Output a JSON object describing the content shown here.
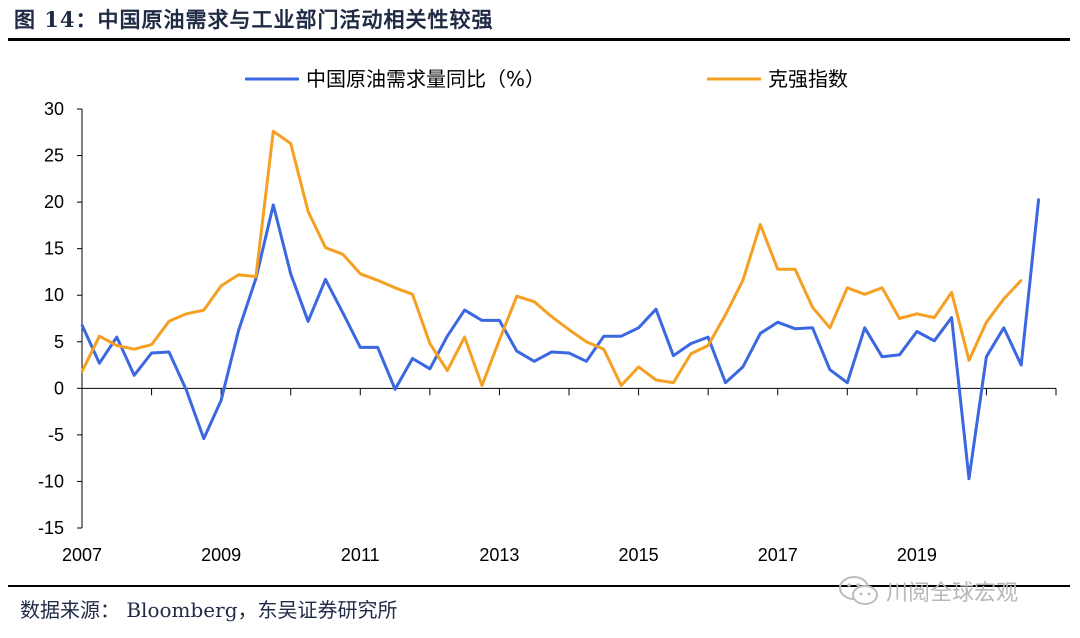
{
  "title": "图 14：中国原油需求与工业部门活动相关性较强",
  "source": "数据来源： Bloomberg，东吴证券研究所",
  "watermark": "川阅全球宏观",
  "colors": {
    "series1": "#3b68e0",
    "series2": "#f5a023",
    "axis": "#000000",
    "text": "#1f2a44"
  },
  "chart_data": {
    "type": "line",
    "ylim": [
      -15,
      30
    ],
    "xlim": [
      2007.0,
      2021.0
    ],
    "yticks": [
      "-15",
      "-10",
      "-5",
      "0",
      "5",
      "10",
      "15",
      "20",
      "25",
      "30"
    ],
    "xticks": [
      "2007",
      "2009",
      "2011",
      "2013",
      "2015",
      "2017",
      "2019"
    ],
    "legend_position": "top",
    "series": [
      {
        "name": "中国原油需求量同比（%）",
        "color": "#3b68e0",
        "points": [
          [
            2007.0,
            6.8
          ],
          [
            2007.25,
            2.7
          ],
          [
            2007.5,
            5.5
          ],
          [
            2007.75,
            1.4
          ],
          [
            2008.0,
            3.8
          ],
          [
            2008.25,
            3.9
          ],
          [
            2008.5,
            -0.2
          ],
          [
            2008.75,
            -5.4
          ],
          [
            2009.0,
            -1.3
          ],
          [
            2009.25,
            6.2
          ],
          [
            2009.5,
            11.8
          ],
          [
            2009.75,
            19.7
          ],
          [
            2010.0,
            12.3
          ],
          [
            2010.25,
            7.2
          ],
          [
            2010.5,
            11.7
          ],
          [
            2010.75,
            8.1
          ],
          [
            2011.0,
            4.4
          ],
          [
            2011.25,
            4.4
          ],
          [
            2011.5,
            -0.1
          ],
          [
            2011.75,
            3.2
          ],
          [
            2012.0,
            2.1
          ],
          [
            2012.25,
            5.6
          ],
          [
            2012.5,
            8.4
          ],
          [
            2012.75,
            7.3
          ],
          [
            2013.0,
            7.3
          ],
          [
            2013.25,
            4.0
          ],
          [
            2013.5,
            2.9
          ],
          [
            2013.75,
            3.9
          ],
          [
            2014.0,
            3.8
          ],
          [
            2014.25,
            2.9
          ],
          [
            2014.5,
            5.6
          ],
          [
            2014.75,
            5.6
          ],
          [
            2015.0,
            6.5
          ],
          [
            2015.25,
            8.5
          ],
          [
            2015.5,
            3.5
          ],
          [
            2015.75,
            4.8
          ],
          [
            2016.0,
            5.5
          ],
          [
            2016.25,
            0.6
          ],
          [
            2016.5,
            2.3
          ],
          [
            2016.75,
            5.9
          ],
          [
            2017.0,
            7.1
          ],
          [
            2017.25,
            6.4
          ],
          [
            2017.5,
            6.5
          ],
          [
            2017.75,
            2.0
          ],
          [
            2018.0,
            0.6
          ],
          [
            2018.25,
            6.5
          ],
          [
            2018.5,
            3.4
          ],
          [
            2018.75,
            3.6
          ],
          [
            2019.0,
            6.1
          ],
          [
            2019.25,
            5.1
          ],
          [
            2019.5,
            7.6
          ],
          [
            2019.75,
            -9.7
          ],
          [
            2020.0,
            3.4
          ],
          [
            2020.25,
            6.5
          ],
          [
            2020.5,
            2.5
          ],
          [
            2020.75,
            20.3
          ]
        ]
      },
      {
        "name": "克强指数",
        "color": "#f5a023",
        "points": [
          [
            2007.0,
            1.8
          ],
          [
            2007.25,
            5.6
          ],
          [
            2007.5,
            4.6
          ],
          [
            2007.75,
            4.2
          ],
          [
            2008.0,
            4.7
          ],
          [
            2008.25,
            7.2
          ],
          [
            2008.5,
            8.0
          ],
          [
            2008.75,
            8.4
          ],
          [
            2009.0,
            11.0
          ],
          [
            2009.25,
            12.2
          ],
          [
            2009.5,
            12.0
          ],
          [
            2009.75,
            27.6
          ],
          [
            2010.0,
            26.3
          ],
          [
            2010.25,
            19.0
          ],
          [
            2010.5,
            15.1
          ],
          [
            2010.75,
            14.4
          ],
          [
            2011.0,
            12.3
          ],
          [
            2011.25,
            11.6
          ],
          [
            2011.5,
            10.8
          ],
          [
            2011.75,
            10.1
          ],
          [
            2012.0,
            4.8
          ],
          [
            2012.25,
            1.9
          ],
          [
            2012.5,
            5.5
          ],
          [
            2012.75,
            0.3
          ],
          [
            2013.0,
            5.2
          ],
          [
            2013.25,
            9.9
          ],
          [
            2013.5,
            9.3
          ],
          [
            2013.75,
            7.7
          ],
          [
            2014.0,
            6.3
          ],
          [
            2014.25,
            5.0
          ],
          [
            2014.5,
            4.2
          ],
          [
            2014.75,
            0.3
          ],
          [
            2015.0,
            2.3
          ],
          [
            2015.25,
            0.9
          ],
          [
            2015.5,
            0.6
          ],
          [
            2015.75,
            3.7
          ],
          [
            2016.0,
            4.6
          ],
          [
            2016.25,
            7.9
          ],
          [
            2016.5,
            11.6
          ],
          [
            2016.75,
            17.6
          ],
          [
            2017.0,
            12.8
          ],
          [
            2017.25,
            12.8
          ],
          [
            2017.5,
            8.7
          ],
          [
            2017.75,
            6.5
          ],
          [
            2018.0,
            10.8
          ],
          [
            2018.25,
            10.1
          ],
          [
            2018.5,
            10.8
          ],
          [
            2018.75,
            7.5
          ],
          [
            2019.0,
            8.0
          ],
          [
            2019.25,
            7.6
          ],
          [
            2019.5,
            10.3
          ],
          [
            2019.75,
            3.0
          ],
          [
            2020.0,
            7.1
          ],
          [
            2020.25,
            9.6
          ],
          [
            2020.5,
            11.6
          ]
        ]
      }
    ]
  }
}
